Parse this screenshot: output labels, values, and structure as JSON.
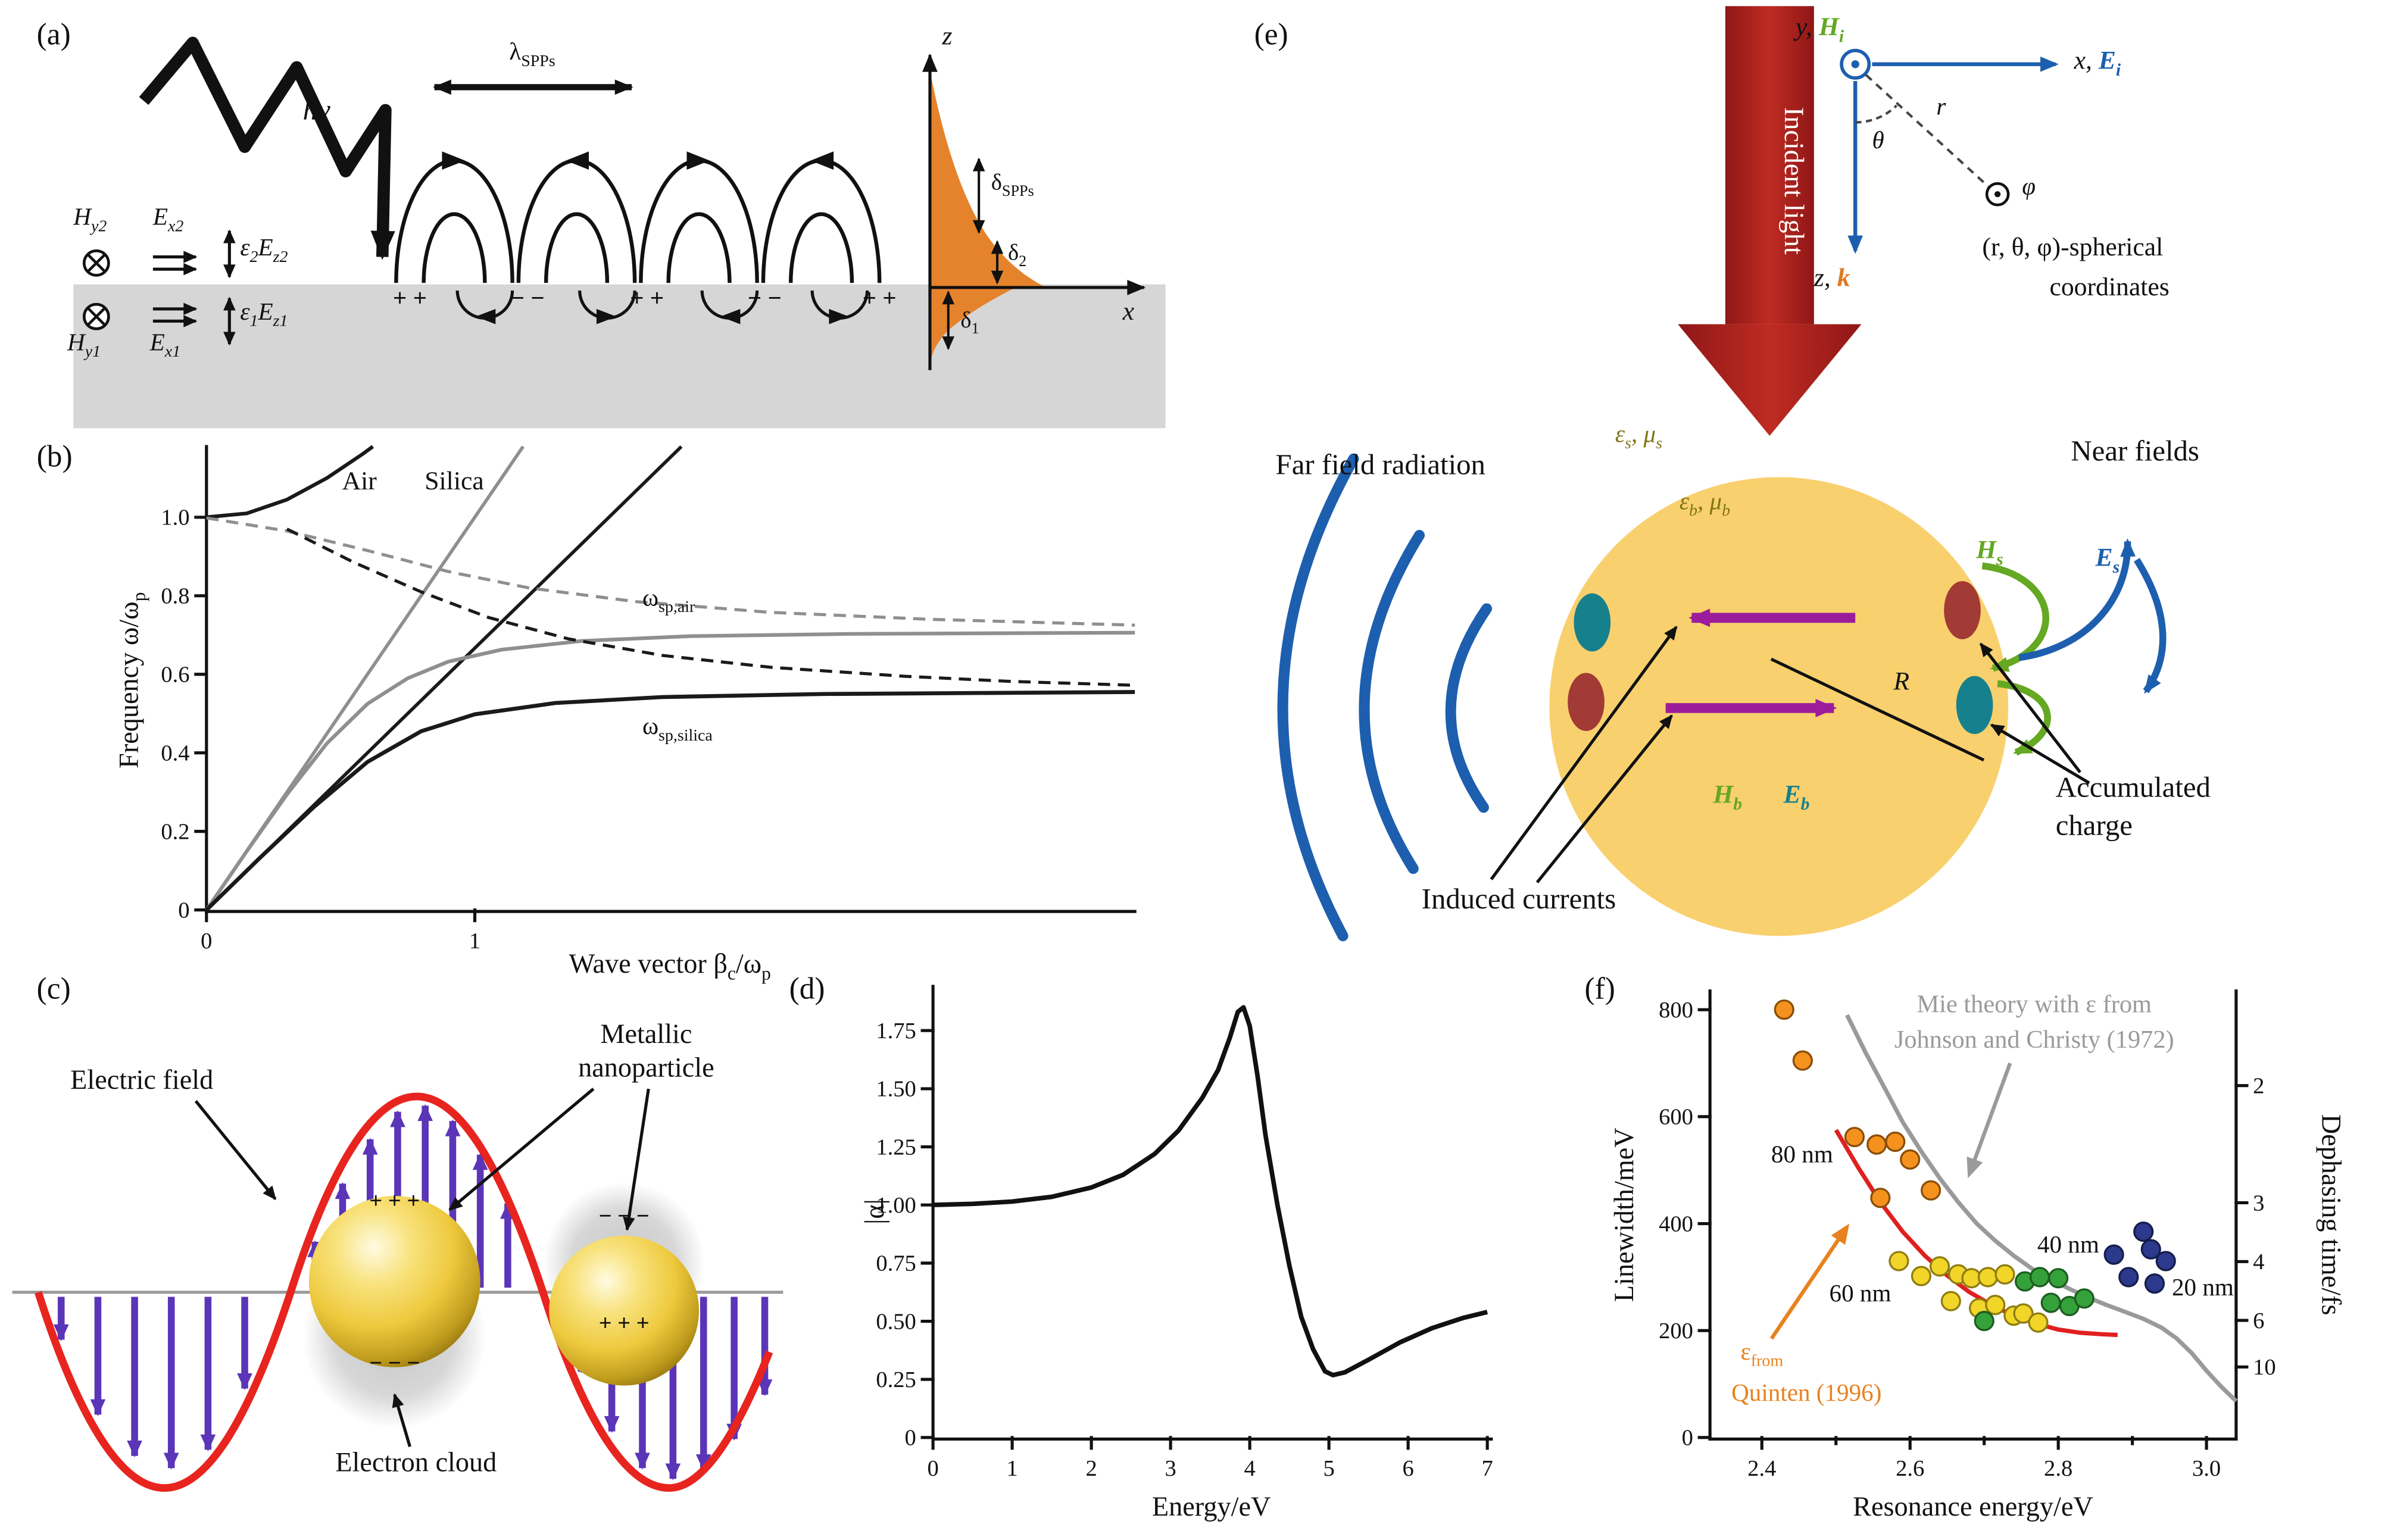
{
  "panels": {
    "a": {
      "label": "(a)",
      "hv": "hν",
      "lambda": "λ<sub>SPPs</sub>",
      "fields": {
        "hy2": "H<sub>y2</sub>",
        "ex2": "E<sub>x2</sub>",
        "e2ez2": "ε<sub>2</sub>E<sub>z2</sub>",
        "hy1": "H<sub>y1</sub>",
        "ex1": "E<sub>x1</sub>",
        "e1ez1": "ε<sub>1</sub>E<sub>z1</sub>"
      },
      "charges": [
        "+ +",
        "− −",
        "+ +",
        "− −",
        "+ +"
      ],
      "axes": {
        "z": "z",
        "x": "x"
      },
      "depths": {
        "spps": "δ<sub>SPPs</sub>",
        "d2": "δ<sub>2</sub>",
        "d1": "δ<sub>1</sub>"
      }
    },
    "b": {
      "label": "(b)"
    },
    "c": {
      "label": "(c)",
      "electric_field": "Electric field",
      "metallic_1": "Metallic",
      "metallic_2": "nanoparticle",
      "electron_cloud": "Electron cloud",
      "s1_plus": "+ + +",
      "s1_minus": "− − −",
      "s2_minus": "− − −",
      "s2_plus": "+ + +"
    },
    "d": {
      "label": "(d)"
    },
    "e": {
      "label": "(e)",
      "incident": "Incident light",
      "coord": {
        "y": "y,",
        "hi": "H<sub>i</sub>",
        "x": "x,",
        "ei": "E<sub>i</sub>",
        "z": "z,",
        "k": "k",
        "theta": "θ",
        "r": "r",
        "phi": "φ",
        "line1": "(r, θ, φ)-spherical",
        "line2": "coordinates"
      },
      "eps_s": "ε<sub>s</sub>, μ<sub>s</sub>",
      "eps_b": "ε<sub>b</sub>, μ<sub>b</sub>",
      "far_field": "Far field radiation",
      "near_fields": "Near fields",
      "hs": "H<sub>s</sub>",
      "es": "E<sub>s</sub>",
      "hb": "H<sub>b</sub>",
      "eb": "E<sub>b</sub>",
      "R": "R",
      "induced": "Induced currents",
      "acc1": "Accumulated",
      "acc2": "charge"
    },
    "f": {
      "label": "(f)"
    }
  },
  "colors": {
    "slab_gray": "#d6d6d6",
    "orange_decay": "#e5832c",
    "incident_red": "#a62121",
    "sphere_yellow": "#f9d06e",
    "blue": "#1d5fae",
    "green": "#64a823",
    "purple_e": "#9b1d9b",
    "purple_c": "#5b35b8",
    "teal": "#17808d",
    "dark_red": "#a23a35",
    "sine_red": "#e8241f"
  },
  "chart_data": [
    {
      "id": "spp-dispersion",
      "type": "line",
      "xlabel": "Wave vector β<sub>c</sub>/ω<sub>p</sub>",
      "ylabel": "Frequency ω/ω<sub>p</sub>",
      "xlim": [
        0,
        3.46
      ],
      "ylim": [
        0,
        1.18
      ],
      "xticks": {
        "values": [
          0,
          1
        ],
        "labels": [
          "0",
          "1"
        ]
      },
      "yticks": {
        "values": [
          0,
          0.2,
          0.4,
          0.6,
          0.8,
          1.0
        ],
        "labels": [
          "0",
          "0.2",
          "0.4",
          "0.6",
          "0.8",
          "1.0"
        ]
      },
      "annotations": {
        "air": "Air",
        "silica": "Silica",
        "wsp_air": "ω<sub>sp,air</sub>",
        "wsp_silica": "ω<sub>sp,silica</sub>"
      },
      "series": [
        {
          "name": "air light line",
          "type": "line",
          "color": "#8f8f8f",
          "width": 2.2,
          "points": [
            [
              0,
              0
            ],
            [
              1.18,
              1.18
            ]
          ]
        },
        {
          "name": "silica light line",
          "type": "line",
          "color": "#1a1a1a",
          "width": 2.2,
          "points": [
            [
              0,
              0
            ],
            [
              1.77,
              1.18
            ]
          ]
        },
        {
          "name": "upper branch",
          "type": "line",
          "color": "#1a1a1a",
          "width": 2.4,
          "points": [
            [
              0,
              1.0
            ],
            [
              0.15,
              1.01
            ],
            [
              0.3,
              1.045
            ],
            [
              0.45,
              1.1
            ],
            [
              0.58,
              1.16
            ],
            [
              0.62,
              1.18
            ]
          ]
        },
        {
          "name": "SPP air",
          "type": "line",
          "color": "#8f8f8f",
          "width": 2.4,
          "points": [
            [
              0,
              0
            ],
            [
              0.15,
              0.149
            ],
            [
              0.3,
              0.294
            ],
            [
              0.45,
              0.425
            ],
            [
              0.6,
              0.525
            ],
            [
              0.75,
              0.59
            ],
            [
              0.9,
              0.632
            ],
            [
              1.1,
              0.663
            ],
            [
              1.4,
              0.685
            ],
            [
              1.8,
              0.697
            ],
            [
              2.4,
              0.703
            ],
            [
              3.46,
              0.706
            ]
          ]
        },
        {
          "name": "SPP silica",
          "type": "line",
          "color": "#1a1a1a",
          "width": 2.6,
          "points": [
            [
              0,
              0
            ],
            [
              0.2,
              0.133
            ],
            [
              0.4,
              0.262
            ],
            [
              0.6,
              0.377
            ],
            [
              0.8,
              0.455
            ],
            [
              1.0,
              0.498
            ],
            [
              1.3,
              0.527
            ],
            [
              1.7,
              0.542
            ],
            [
              2.3,
              0.55
            ],
            [
              3.46,
              0.555
            ]
          ]
        },
        {
          "name": "quasibound air",
          "type": "line",
          "color": "#8f8f8f",
          "width": 2,
          "dash": "8,5",
          "points": [
            [
              0,
              0.998
            ],
            [
              0.3,
              0.965
            ],
            [
              0.6,
              0.915
            ],
            [
              0.9,
              0.862
            ],
            [
              1.2,
              0.82
            ],
            [
              1.6,
              0.785
            ],
            [
              2.1,
              0.758
            ],
            [
              2.7,
              0.74
            ],
            [
              3.46,
              0.725
            ]
          ]
        },
        {
          "name": "quasibound silica",
          "type": "line",
          "color": "#1a1a1a",
          "width": 2,
          "dash": "8,5",
          "points": [
            [
              0.3,
              0.97
            ],
            [
              0.55,
              0.885
            ],
            [
              0.8,
              0.81
            ],
            [
              1.05,
              0.745
            ],
            [
              1.35,
              0.69
            ],
            [
              1.7,
              0.648
            ],
            [
              2.1,
              0.618
            ],
            [
              2.6,
              0.595
            ],
            [
              3.0,
              0.582
            ],
            [
              3.46,
              0.572
            ]
          ]
        }
      ],
      "layout": {
        "l": 75,
        "r": 18,
        "t": 12,
        "b": 48
      }
    },
    {
      "id": "polarizability",
      "type": "line",
      "xlabel": "Energy/eV",
      "ylabel": "|α|",
      "xlim": [
        0,
        7.05
      ],
      "ylim": [
        0,
        1.94
      ],
      "xticks": {
        "values": [
          0,
          1,
          2,
          3,
          4,
          5,
          6,
          7
        ],
        "labels": [
          "0",
          "1",
          "2",
          "3",
          "4",
          "5",
          "6",
          "7"
        ]
      },
      "yticks": {
        "values": [
          0,
          0.25,
          0.5,
          0.75,
          1.0,
          1.25,
          1.5,
          1.75
        ],
        "labels": [
          "0",
          "0.25",
          "0.50",
          "0.75",
          "1.00",
          "1.25",
          "1.50",
          "1.75"
        ]
      },
      "series": [
        {
          "name": "|alpha|",
          "type": "line",
          "color": "#111111",
          "width": 3,
          "points": [
            [
              0,
              1.0
            ],
            [
              0.5,
              1.005
            ],
            [
              1.0,
              1.015
            ],
            [
              1.5,
              1.035
            ],
            [
              2.0,
              1.075
            ],
            [
              2.4,
              1.13
            ],
            [
              2.8,
              1.22
            ],
            [
              3.1,
              1.32
            ],
            [
              3.4,
              1.46
            ],
            [
              3.6,
              1.58
            ],
            [
              3.75,
              1.72
            ],
            [
              3.85,
              1.83
            ],
            [
              3.92,
              1.85
            ],
            [
              4.0,
              1.77
            ],
            [
              4.1,
              1.55
            ],
            [
              4.2,
              1.3
            ],
            [
              4.35,
              1.0
            ],
            [
              4.5,
              0.74
            ],
            [
              4.65,
              0.52
            ],
            [
              4.8,
              0.38
            ],
            [
              4.95,
              0.285
            ],
            [
              5.05,
              0.268
            ],
            [
              5.2,
              0.28
            ],
            [
              5.5,
              0.335
            ],
            [
              5.9,
              0.41
            ],
            [
              6.3,
              0.47
            ],
            [
              6.7,
              0.515
            ],
            [
              7.0,
              0.54
            ]
          ]
        }
      ],
      "layout": {
        "l": 70,
        "r": 25,
        "t": 15,
        "b": 67
      }
    },
    {
      "id": "linewidth-vs-resonance",
      "type": "scatter",
      "xlabel": "Resonance energy/eV",
      "ylabel": "Linewidth/meV",
      "ylabel_right": "Dephasing time/fs",
      "xlim": [
        2.33,
        3.04
      ],
      "ylim": [
        0,
        835
      ],
      "xticks": {
        "values": [
          2.4,
          2.6,
          2.8,
          3.0
        ],
        "labels": [
          "2.4",
          "2.6",
          "2.8",
          "3.0"
        ]
      },
      "xminor": [
        2.5,
        2.7,
        2.9
      ],
      "yticks": {
        "values": [
          0,
          200,
          400,
          600,
          800
        ],
        "labels": [
          "0",
          "200",
          "400",
          "600",
          "800"
        ]
      },
      "yticks_right": {
        "values": [
          658,
          439,
          329,
          219,
          132
        ],
        "labels": [
          "2",
          "3",
          "4",
          "6",
          "10"
        ]
      },
      "annotations": {
        "mie1": "Mie theory with ε from",
        "mie2": "Johnson and Christy (1972)",
        "n80": "80 nm",
        "n60": "60 nm",
        "n40": "40 nm",
        "n20": "20 nm",
        "eps_from": "ε<sub>from</sub>",
        "quinten": "Quinten (1996)"
      },
      "series": [
        {
          "name": "Mie theory (Johnson and Christy 1972)",
          "type": "line",
          "color": "#9a9a9a",
          "width": 2.8,
          "points": [
            [
              2.515,
              790
            ],
            [
              2.54,
              720
            ],
            [
              2.565,
              655
            ],
            [
              2.59,
              590
            ],
            [
              2.615,
              535
            ],
            [
              2.64,
              485
            ],
            [
              2.665,
              440
            ],
            [
              2.69,
              400
            ],
            [
              2.715,
              368
            ],
            [
              2.74,
              340
            ],
            [
              2.765,
              315
            ],
            [
              2.79,
              295
            ],
            [
              2.815,
              278
            ],
            [
              2.84,
              262
            ],
            [
              2.865,
              248
            ],
            [
              2.89,
              235
            ],
            [
              2.915,
              222
            ],
            [
              2.94,
              205
            ],
            [
              2.96,
              185
            ],
            [
              2.98,
              158
            ],
            [
              3.0,
              125
            ],
            [
              3.02,
              95
            ],
            [
              3.04,
              68
            ]
          ]
        },
        {
          "name": "ε from Quinten (1996)",
          "type": "line",
          "color": "#e11f1f",
          "width": 2.8,
          "points": [
            [
              2.5,
              575
            ],
            [
              2.53,
              505
            ],
            [
              2.56,
              440
            ],
            [
              2.59,
              385
            ],
            [
              2.62,
              340
            ],
            [
              2.65,
              303
            ],
            [
              2.68,
              272
            ],
            [
              2.71,
              248
            ],
            [
              2.74,
              228
            ],
            [
              2.77,
              213
            ],
            [
              2.8,
              202
            ],
            [
              2.83,
              196
            ],
            [
              2.86,
              193
            ],
            [
              2.88,
              192
            ]
          ]
        },
        {
          "name": "80 nm",
          "type": "scatter",
          "color": "#f5921e",
          "edge": "#8a4e08",
          "points": [
            [
              2.43,
              800
            ],
            [
              2.455,
              705
            ],
            [
              2.525,
              562
            ],
            [
              2.555,
              548
            ],
            [
              2.58,
              553
            ],
            [
              2.6,
              520
            ],
            [
              2.56,
              448
            ],
            [
              2.628,
              462
            ]
          ]
        },
        {
          "name": "60 nm",
          "type": "scatter",
          "color": "#f2d529",
          "edge": "#8f7d10",
          "points": [
            [
              2.585,
              330
            ],
            [
              2.615,
              302
            ],
            [
              2.64,
              320
            ],
            [
              2.655,
              255
            ],
            [
              2.665,
              305
            ],
            [
              2.683,
              298
            ],
            [
              2.693,
              242
            ],
            [
              2.705,
              300
            ],
            [
              2.715,
              248
            ],
            [
              2.728,
              305
            ],
            [
              2.74,
              228
            ],
            [
              2.753,
              232
            ],
            [
              2.773,
              215
            ]
          ]
        },
        {
          "name": "40 nm",
          "type": "scatter",
          "color": "#35a13a",
          "edge": "#1c5e20",
          "points": [
            [
              2.7,
              218
            ],
            [
              2.755,
              292
            ],
            [
              2.775,
              300
            ],
            [
              2.79,
              252
            ],
            [
              2.8,
              298
            ],
            [
              2.815,
              246
            ],
            [
              2.835,
              260
            ]
          ]
        },
        {
          "name": "20 nm",
          "type": "scatter",
          "color": "#2b3a8c",
          "edge": "#151d4d",
          "points": [
            [
              2.875,
              342
            ],
            [
              2.895,
              300
            ],
            [
              2.915,
              385
            ],
            [
              2.925,
              352
            ],
            [
              2.93,
              288
            ],
            [
              2.945,
              330
            ]
          ]
        }
      ],
      "arrows": [
        {
          "from": [
            2.735,
            700
          ],
          "to": [
            2.678,
            485
          ],
          "color": "#9a9a9a"
        },
        {
          "from": [
            2.413,
            185
          ],
          "to": [
            2.518,
            400
          ],
          "color": "#e8821e"
        }
      ],
      "layout": {
        "l": 78,
        "r": 93,
        "t": 18,
        "b": 67
      }
    }
  ]
}
